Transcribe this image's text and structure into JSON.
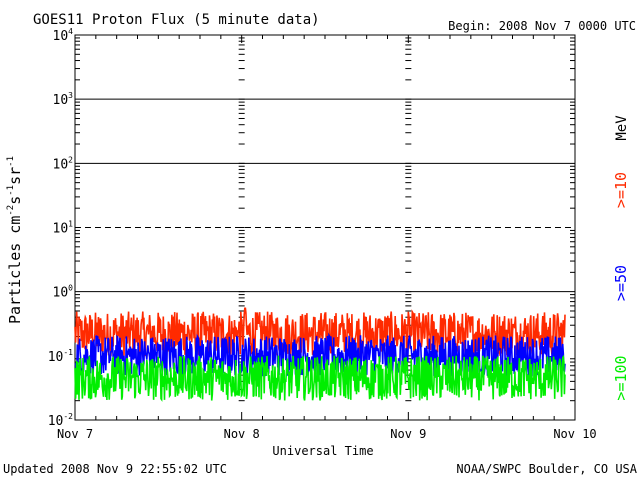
{
  "chart_data": {
    "type": "line",
    "title": "GOES11 Proton Flux (5 minute data)",
    "begin_label": "Begin: 2008 Nov 7 0000 UTC",
    "xlabel": "Universal Time",
    "ylabel_parts": [
      "Particles cm",
      "-2",
      "s",
      "-1",
      "sr",
      "-1"
    ],
    "x_ticks": [
      "Nov 7",
      "Nov 8",
      "Nov 9",
      "Nov 10"
    ],
    "y_ticks": [
      {
        "base": "10",
        "exp": "4",
        "value": 10000
      },
      {
        "base": "10",
        "exp": "3",
        "value": 1000
      },
      {
        "base": "10",
        "exp": "2",
        "value": 100
      },
      {
        "base": "10",
        "exp": "1",
        "value": 10
      },
      {
        "base": "10",
        "exp": "0",
        "value": 1
      },
      {
        "base": "10",
        "exp": "-1",
        "value": 0.1
      },
      {
        "base": "10",
        "exp": "-2",
        "value": 0.01
      }
    ],
    "y_scale": "log",
    "ylim": [
      0.01,
      10000
    ],
    "xlim_days": [
      0,
      3
    ],
    "unit_label": "MeV",
    "series": [
      {
        "name": ">=10",
        "color": "#ff2a00",
        "baseline": 0.22,
        "spread": 0.35
      },
      {
        "name": ">=50",
        "color": "#0000ff",
        "baseline": 0.1,
        "spread": 0.32
      },
      {
        "name": ">=100",
        "color": "#00ee00",
        "baseline": 0.045,
        "spread": 0.35
      }
    ],
    "footer_left": "Updated 2008 Nov  9 22:55:02 UTC",
    "footer_right": "NOAA/SWPC Boulder, CO USA"
  }
}
